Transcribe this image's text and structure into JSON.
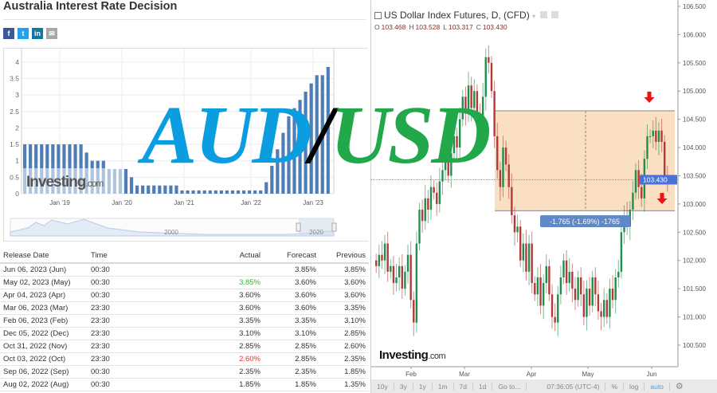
{
  "left": {
    "title": "Australia Interest Rate Decision",
    "share": [
      {
        "icon": "facebook-icon",
        "glyph": "f",
        "color": "#3b5998"
      },
      {
        "icon": "twitter-icon",
        "glyph": "t",
        "color": "#1da1f2"
      },
      {
        "icon": "linkedin-icon",
        "glyph": "in",
        "color": "#0e76a8"
      },
      {
        "icon": "email-icon",
        "glyph": "✉",
        "color": "#a8a8a8"
      }
    ],
    "watermark": "Investing",
    "watermark_suffix": ".com",
    "navigator_labels": [
      "2000",
      "2020"
    ],
    "table": {
      "headers": [
        "Release Date",
        "Time",
        "Actual",
        "Forecast",
        "Previous"
      ],
      "rows": [
        {
          "date": "Jun 06, 2023 (Jun)",
          "time": "00:30",
          "actual": "",
          "forecast": "3.85%",
          "previous": "3.85%",
          "status": ""
        },
        {
          "date": "May 02, 2023 (May)",
          "time": "00:30",
          "actual": "3.85%",
          "forecast": "3.60%",
          "previous": "3.60%",
          "status": "up"
        },
        {
          "date": "Apr 04, 2023 (Apr)",
          "time": "00:30",
          "actual": "3.60%",
          "forecast": "3.60%",
          "previous": "3.60%",
          "status": ""
        },
        {
          "date": "Mar 06, 2023 (Mar)",
          "time": "23:30",
          "actual": "3.60%",
          "forecast": "3.60%",
          "previous": "3.35%",
          "status": ""
        },
        {
          "date": "Feb 06, 2023 (Feb)",
          "time": "23:30",
          "actual": "3.35%",
          "forecast": "3.35%",
          "previous": "3.10%",
          "status": ""
        },
        {
          "date": "Dec 05, 2022 (Dec)",
          "time": "23:30",
          "actual": "3.10%",
          "forecast": "3.10%",
          "previous": "2.85%",
          "status": ""
        },
        {
          "date": "Oct 31, 2022 (Nov)",
          "time": "23:30",
          "actual": "2.85%",
          "forecast": "2.85%",
          "previous": "2.60%",
          "status": ""
        },
        {
          "date": "Oct 03, 2022 (Oct)",
          "time": "23:30",
          "actual": "2.60%",
          "forecast": "2.85%",
          "previous": "2.35%",
          "status": "down"
        },
        {
          "date": "Sep 06, 2022 (Sep)",
          "time": "00:30",
          "actual": "2.35%",
          "forecast": "2.35%",
          "previous": "1.85%",
          "status": ""
        },
        {
          "date": "Aug 02, 2022 (Aug)",
          "time": "00:30",
          "actual": "1.85%",
          "forecast": "1.85%",
          "previous": "1.35%",
          "status": ""
        }
      ],
      "colors": {
        "up": "#2eb82e",
        "down": "#f03030"
      }
    }
  },
  "overlay": {
    "aud": "AUD",
    "slash": "/",
    "usd": "USD"
  },
  "right": {
    "title": "US Dollar Index Futures, D, (CFD)",
    "ohlc": [
      {
        "k": "O",
        "v": "103.468"
      },
      {
        "k": "H",
        "v": "103.528"
      },
      {
        "k": "L",
        "v": "103.317"
      },
      {
        "k": "C",
        "v": "103.430"
      }
    ],
    "measure_label": "-1.765 (-1.69%) -1765",
    "current_price": "103.430",
    "watermark": "Investing",
    "watermark_suffix": ".com",
    "toolbar": [
      "10y",
      "3y",
      "1y",
      "1m",
      "7d",
      "1d",
      "Go to...",
      "07:36:05 (UTC-4)",
      "%",
      "log",
      "auto"
    ],
    "toolbar_active": "auto"
  },
  "chart_data": [
    {
      "type": "bar",
      "title": "Australia Interest Rate Decision",
      "ylim": [
        0,
        4
      ],
      "yticks": [
        "0",
        "0.5",
        "1",
        "1.5",
        "2",
        "2.5",
        "3",
        "3.5",
        "4"
      ],
      "xticks": [
        "Jan '19",
        "Jan '20",
        "Jan '21",
        "Jan '22",
        "Jan '23"
      ],
      "values": [
        1.5,
        1.5,
        1.5,
        1.5,
        1.5,
        1.5,
        1.5,
        1.5,
        1.5,
        1.5,
        1.5,
        1.25,
        1.0,
        1.0,
        1.0,
        0.75,
        0.75,
        0.75,
        0.75,
        0.5,
        0.25,
        0.25,
        0.25,
        0.25,
        0.25,
        0.25,
        0.25,
        0.25,
        0.1,
        0.1,
        0.1,
        0.1,
        0.1,
        0.1,
        0.1,
        0.1,
        0.1,
        0.1,
        0.1,
        0.1,
        0.1,
        0.1,
        0.1,
        0.35,
        0.85,
        1.35,
        1.85,
        2.35,
        2.6,
        2.85,
        3.1,
        3.35,
        3.6,
        3.6,
        3.85
      ],
      "color": "#4f7db5"
    },
    {
      "type": "candlestick",
      "title": "US Dollar Index Futures, D, (CFD)",
      "ylim": [
        100.25,
        106.55
      ],
      "yticks": [
        "100.500",
        "101.000",
        "101.500",
        "102.000",
        "102.500",
        "103.000",
        "103.500",
        "104.000",
        "104.500",
        "105.000",
        "105.500",
        "106.000",
        "106.500"
      ],
      "xticks": [
        "Feb",
        "Mar",
        "Apr",
        "May",
        "Jun"
      ],
      "closes": [
        101.9,
        102.1,
        102.0,
        102.3,
        101.8,
        101.9,
        101.6,
        101.7,
        101.9,
        101.5,
        101.8,
        102.1,
        101.3,
        100.9,
        102.3,
        102.9,
        102.7,
        103.1,
        102.9,
        103.3,
        103.2,
        103.0,
        103.4,
        103.6,
        103.8,
        103.5,
        103.9,
        104.2,
        104.0,
        104.5,
        104.9,
        104.6,
        105.1,
        104.7,
        105.0,
        104.6,
        104.4,
        104.9,
        105.6,
        105.5,
        105.0,
        104.2,
        103.6,
        103.3,
        104.0,
        103.7,
        103.3,
        102.8,
        102.5,
        102.6,
        102.0,
        102.3,
        101.8,
        102.3,
        101.6,
        101.4,
        101.7,
        101.2,
        101.6,
        101.9,
        101.4,
        101.0,
        100.9,
        101.4,
        101.7,
        102.0,
        101.6,
        101.8,
        101.5,
        101.3,
        101.7,
        101.4,
        101.0,
        101.5,
        101.2,
        101.7,
        101.4,
        101.1,
        101.0,
        101.3,
        101.0,
        101.5,
        101.3,
        101.7,
        101.8,
        102.5,
        102.8,
        102.6,
        102.9,
        103.2,
        103.6,
        103.3,
        103.1,
        103.8,
        104.2,
        104.2,
        104.3,
        104.1,
        104.3,
        104.1,
        103.5,
        103.43
      ],
      "range_box": [
        102.88,
        104.65
      ],
      "up_color": "#1f8f4e",
      "down_color": "#b43a3a",
      "box_color": "#fadfc2",
      "price_tag_color": "#4a72d8",
      "arrow_color": "#ee1111"
    }
  ]
}
